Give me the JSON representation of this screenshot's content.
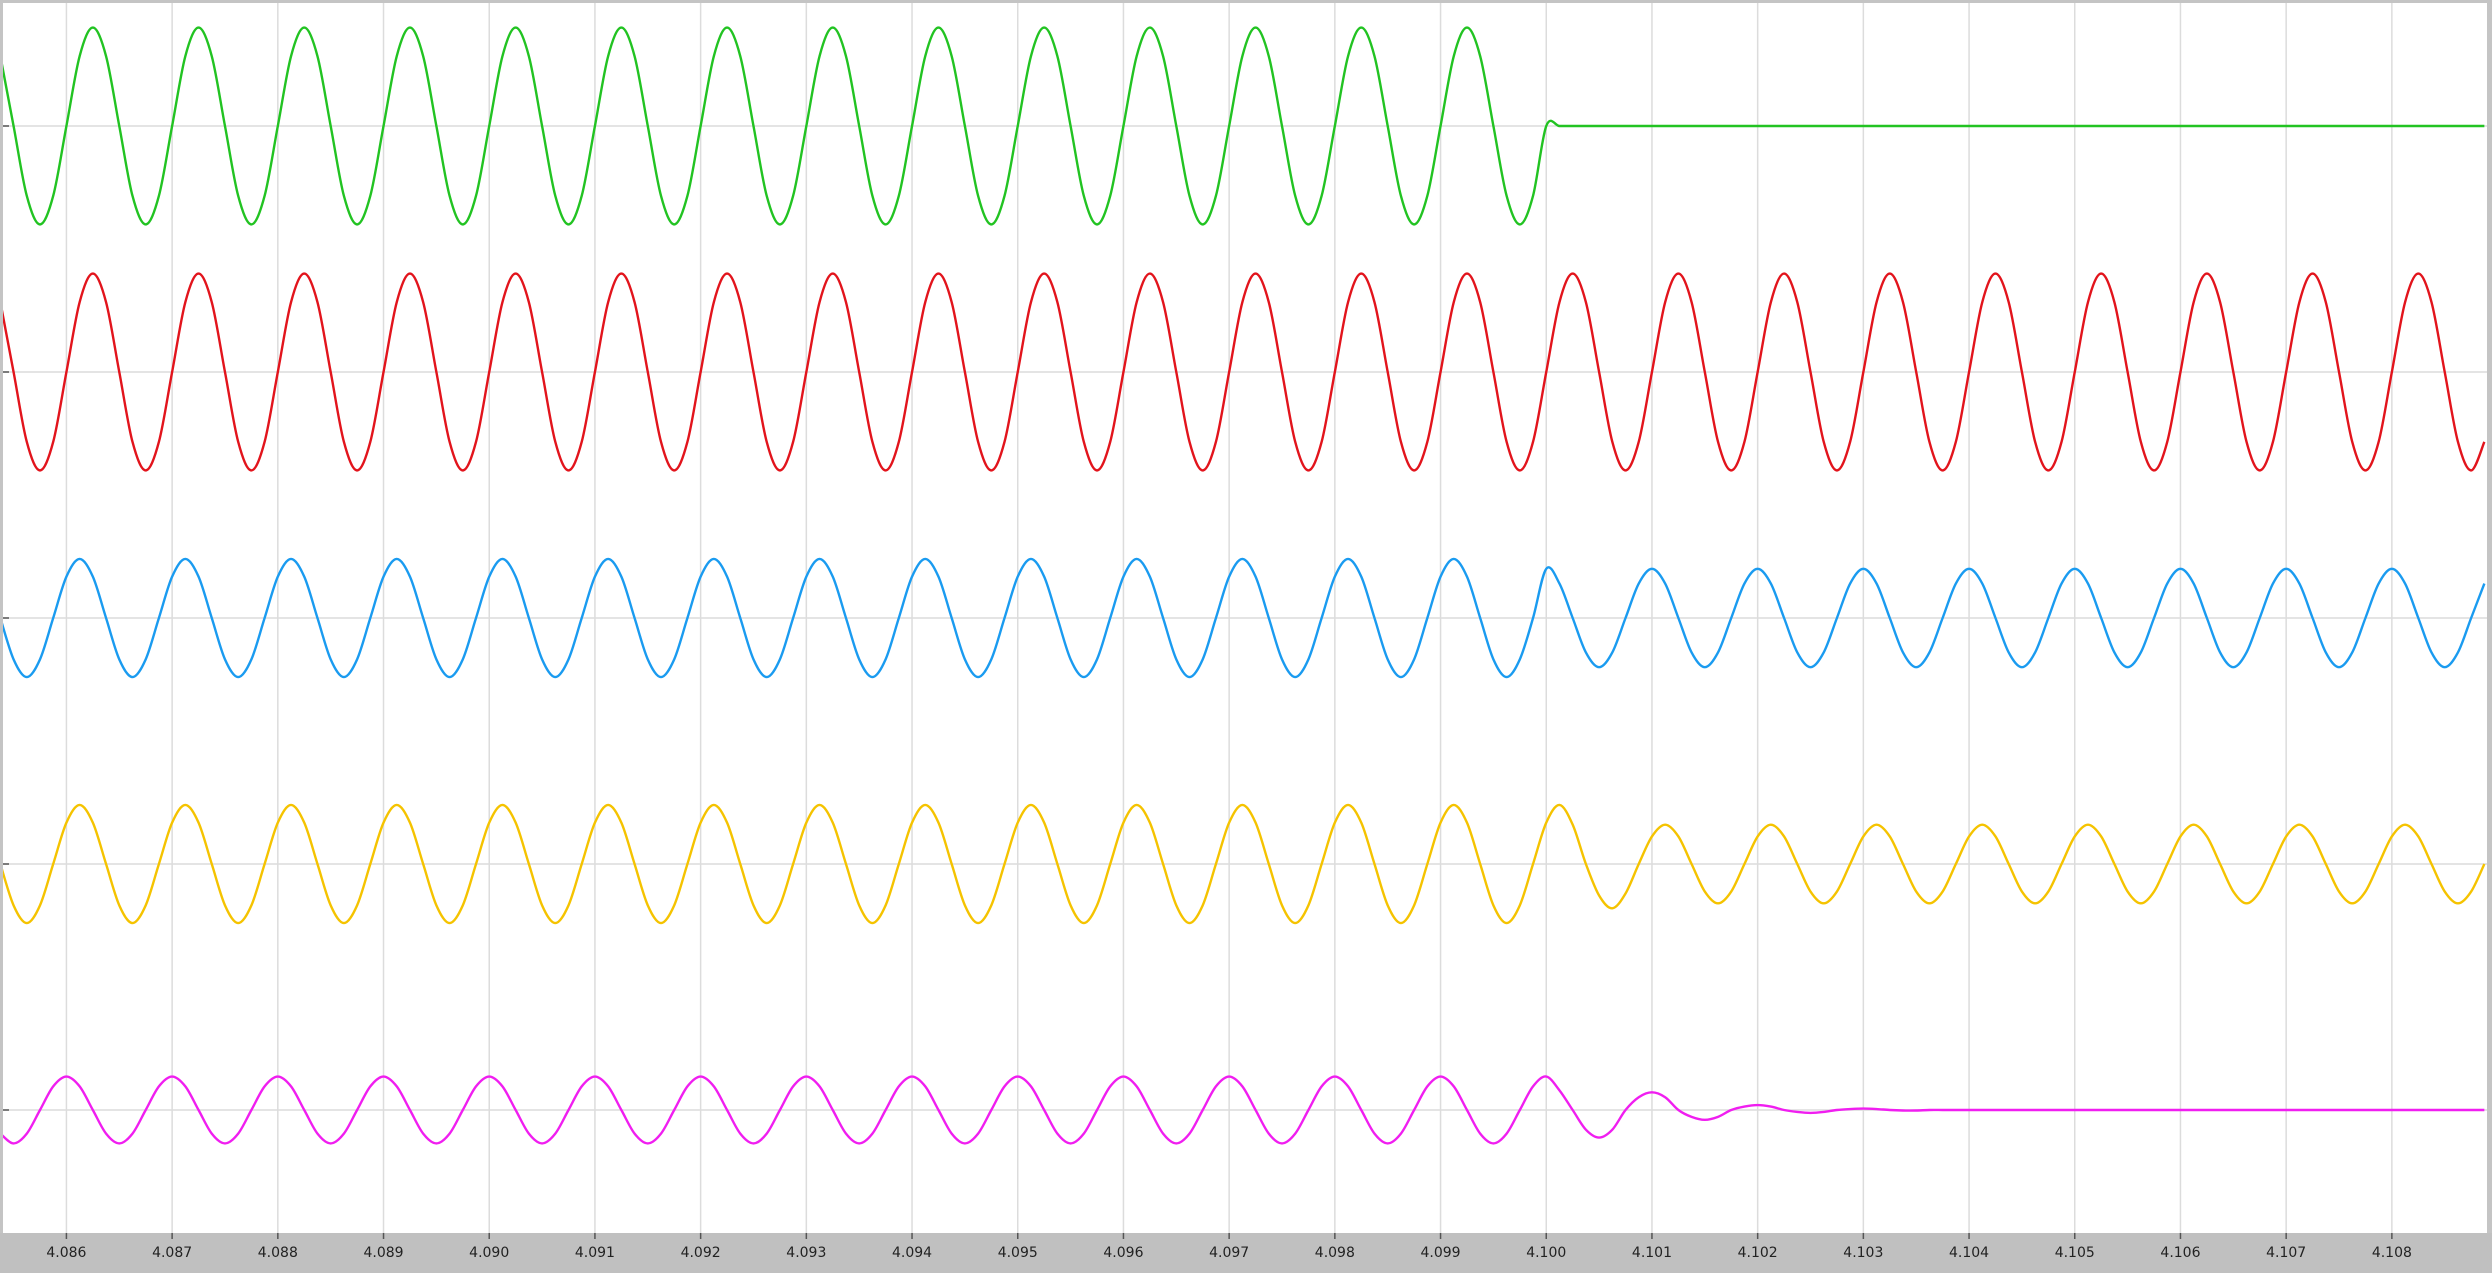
{
  "chart_data": {
    "type": "line",
    "xlim": [
      4.0854,
      4.1089
    ],
    "xticks": [
      4.086,
      4.087,
      4.088,
      4.089,
      {
        "value": 4.09,
        "label": "4.090"
      },
      4.091,
      4.092,
      4.093,
      4.094,
      4.095,
      4.096,
      4.097,
      4.098,
      4.099,
      {
        "value": 4.1,
        "label": "4.100"
      },
      4.101,
      4.102,
      4.103,
      4.104,
      4.105,
      4.106,
      4.107,
      4.108
    ],
    "ylim": [
      -1.25,
      1.25
    ],
    "yticks": [
      0
    ],
    "grid": true,
    "x": [
      4.085375,
      4.0855,
      4.085625,
      4.08575,
      4.085875,
      4.086,
      4.086125,
      4.08625,
      4.086375,
      4.0865,
      4.086625,
      4.08675,
      4.086875,
      4.087,
      4.087125,
      4.08725,
      4.087375,
      4.0875,
      4.087625,
      4.08775,
      4.087875,
      4.088,
      4.088125,
      4.08825,
      4.088375,
      4.0885,
      4.088625,
      4.08875,
      4.088875,
      4.089,
      4.089125,
      4.08925,
      4.089375,
      4.0895,
      4.089625,
      4.08975,
      4.089875,
      4.09,
      4.090125,
      4.09025,
      4.090375,
      4.0905,
      4.090625,
      4.09075,
      4.090875,
      4.091,
      4.091125,
      4.09125,
      4.091375,
      4.0915,
      4.091625,
      4.09175,
      4.091875,
      4.092,
      4.092125,
      4.09225,
      4.092375,
      4.0925,
      4.092625,
      4.09275,
      4.092875,
      4.093,
      4.093125,
      4.09325,
      4.093375,
      4.0935,
      4.093625,
      4.09375,
      4.093875,
      4.094,
      4.094125,
      4.09425,
      4.094375,
      4.0945,
      4.094625,
      4.09475,
      4.094875,
      4.095,
      4.095125,
      4.09525,
      4.095375,
      4.0955,
      4.095625,
      4.09575,
      4.095875,
      4.096,
      4.096125,
      4.09625,
      4.096375,
      4.0965,
      4.096625,
      4.09675,
      4.096875,
      4.097,
      4.097125,
      4.09725,
      4.097375,
      4.0975,
      4.097625,
      4.09775,
      4.097875,
      4.098,
      4.098125,
      4.09825,
      4.098375,
      4.0985,
      4.098625,
      4.09875,
      4.098875,
      4.099,
      4.099125,
      4.09925,
      4.099375,
      4.0995,
      4.099625,
      4.09975,
      4.099875,
      4.1,
      4.100125,
      4.10025,
      4.100375,
      4.1005,
      4.100625,
      4.10075,
      4.100875,
      4.101,
      4.101125,
      4.10125,
      4.101375,
      4.1015,
      4.101625,
      4.10175,
      4.101875,
      4.102,
      4.102125,
      4.10225,
      4.102375,
      4.1025,
      4.102625,
      4.10275,
      4.102875,
      4.103,
      4.103125,
      4.10325,
      4.103375,
      4.1035,
      4.103625,
      4.10375,
      4.103875,
      4.104,
      4.104125,
      4.10425,
      4.104375,
      4.1045,
      4.104625,
      4.10475,
      4.104875,
      4.105,
      4.105125,
      4.10525,
      4.105375,
      4.1055,
      4.105625,
      4.10575,
      4.105875,
      4.106,
      4.106125,
      4.10625,
      4.106375,
      4.1065,
      4.106625,
      4.10675,
      4.106875,
      4.107,
      4.107125,
      4.10725,
      4.107375,
      4.1075,
      4.107625,
      4.10775,
      4.107875,
      4.108,
      4.108125,
      4.10825,
      4.108375,
      4.1085,
      4.108625,
      4.10875,
      4.108875
    ],
    "series": [
      {
        "color": "#22c322",
        "values": [
          0.71,
          0,
          -0.71,
          -1,
          -0.71,
          0,
          0.71,
          1,
          0.71,
          0,
          -0.71,
          -1,
          -0.71,
          0,
          0.71,
          1,
          0.71,
          0,
          -0.71,
          -1,
          -0.71,
          0,
          0.71,
          1,
          0.71,
          0,
          -0.71,
          -1,
          -0.71,
          0,
          0.71,
          1,
          0.71,
          0,
          -0.71,
          -1,
          -0.71,
          0,
          0.71,
          1,
          0.71,
          0,
          -0.71,
          -1,
          -0.71,
          0,
          0.71,
          1,
          0.71,
          0,
          -0.71,
          -1,
          -0.71,
          0,
          0.71,
          1,
          0.71,
          0,
          -0.71,
          -1,
          -0.71,
          0,
          0.71,
          1,
          0.71,
          0,
          -0.71,
          -1,
          -0.71,
          0,
          0.71,
          1,
          0.71,
          0,
          -0.71,
          -1,
          -0.71,
          0,
          0.71,
          1,
          0.71,
          0,
          -0.71,
          -1,
          -0.71,
          0,
          0.71,
          1,
          0.71,
          0,
          -0.71,
          -1,
          -0.71,
          0,
          0.71,
          1,
          0.71,
          0,
          -0.71,
          -1,
          -0.71,
          0,
          0.71,
          1,
          0.71,
          0,
          -0.71,
          -1,
          -0.71,
          0,
          0.71,
          1,
          0.71,
          0,
          -0.71,
          -1,
          -0.71,
          0,
          0,
          0,
          0,
          0,
          0,
          0,
          0,
          0,
          0,
          0,
          0,
          0,
          0,
          0,
          0,
          0,
          0,
          0,
          0,
          0,
          0,
          0,
          0,
          0,
          0,
          0,
          0,
          0,
          0,
          0,
          0,
          0,
          0,
          0,
          0,
          0,
          0,
          0,
          0,
          0,
          0,
          0,
          0,
          0,
          0,
          0,
          0,
          0,
          0,
          0,
          0,
          0,
          0,
          0,
          0,
          0,
          0,
          0,
          0,
          0,
          0,
          0,
          0,
          0,
          0,
          0,
          0,
          0,
          0,
          0,
          0
        ]
      },
      {
        "color": "#e2141c",
        "values": [
          0.71,
          0,
          -0.71,
          -1,
          -0.71,
          0,
          0.71,
          1,
          0.71,
          0,
          -0.71,
          -1,
          -0.71,
          0,
          0.71,
          1,
          0.71,
          0,
          -0.71,
          -1,
          -0.71,
          0,
          0.71,
          1,
          0.71,
          0,
          -0.71,
          -1,
          -0.71,
          0,
          0.71,
          1,
          0.71,
          0,
          -0.71,
          -1,
          -0.71,
          0,
          0.71,
          1,
          0.71,
          0,
          -0.71,
          -1,
          -0.71,
          0,
          0.71,
          1,
          0.71,
          0,
          -0.71,
          -1,
          -0.71,
          0,
          0.71,
          1,
          0.71,
          0,
          -0.71,
          -1,
          -0.71,
          0,
          0.71,
          1,
          0.71,
          0,
          -0.71,
          -1,
          -0.71,
          0,
          0.71,
          1,
          0.71,
          0,
          -0.71,
          -1,
          -0.71,
          0,
          0.71,
          1,
          0.71,
          0,
          -0.71,
          -1,
          -0.71,
          0,
          0.71,
          1,
          0.71,
          0,
          -0.71,
          -1,
          -0.71,
          0,
          0.71,
          1,
          0.71,
          0,
          -0.71,
          -1,
          -0.71,
          0,
          0.71,
          1,
          0.71,
          0,
          -0.71,
          -1,
          -0.71,
          0,
          0.71,
          1,
          0.71,
          0,
          -0.71,
          -1,
          -0.71,
          0,
          0.71,
          1,
          0.71,
          0,
          -0.71,
          -1,
          -0.71,
          0,
          0.71,
          1,
          0.71,
          0,
          -0.71,
          -1,
          -0.71,
          0,
          0.71,
          1,
          0.71,
          0,
          -0.71,
          -1,
          -0.71,
          0,
          0.71,
          1,
          0.71,
          0,
          -0.71,
          -1,
          -0.71,
          0,
          0.71,
          1,
          0.71,
          0,
          -0.71,
          -1,
          -0.71,
          0,
          0.71,
          1,
          0.71,
          0,
          -0.71,
          -1,
          -0.71,
          0,
          0.71,
          1,
          0.71,
          0,
          -0.71,
          -1,
          -0.71,
          0,
          0.71,
          1,
          0.71,
          0,
          -0.71,
          -1,
          -0.71,
          0,
          0.71,
          1,
          0.71,
          0,
          -0.71,
          -1,
          -0.71
        ]
      },
      {
        "color": "#1a9bf0",
        "values": [
          0,
          -0.42,
          -0.6,
          -0.42,
          0,
          0.42,
          0.6,
          0.42,
          0,
          -0.42,
          -0.6,
          -0.42,
          0,
          0.42,
          0.6,
          0.42,
          0,
          -0.42,
          -0.6,
          -0.42,
          0,
          0.42,
          0.6,
          0.42,
          0,
          -0.42,
          -0.6,
          -0.42,
          0,
          0.42,
          0.6,
          0.42,
          0,
          -0.42,
          -0.6,
          -0.42,
          0,
          0.42,
          0.6,
          0.42,
          0,
          -0.42,
          -0.6,
          -0.42,
          0,
          0.42,
          0.6,
          0.42,
          0,
          -0.42,
          -0.6,
          -0.42,
          0,
          0.42,
          0.6,
          0.42,
          0,
          -0.42,
          -0.6,
          -0.42,
          0,
          0.42,
          0.6,
          0.42,
          0,
          -0.42,
          -0.6,
          -0.42,
          0,
          0.42,
          0.6,
          0.42,
          0,
          -0.42,
          -0.6,
          -0.42,
          0,
          0.42,
          0.6,
          0.42,
          0,
          -0.42,
          -0.6,
          -0.42,
          0,
          0.42,
          0.6,
          0.42,
          0,
          -0.42,
          -0.6,
          -0.42,
          0,
          0.42,
          0.6,
          0.42,
          0,
          -0.42,
          -0.6,
          -0.42,
          0,
          0.42,
          0.6,
          0.42,
          0,
          -0.42,
          -0.6,
          -0.42,
          0,
          0.42,
          0.6,
          0.42,
          0,
          -0.42,
          -0.6,
          -0.42,
          0,
          0.5,
          0.35,
          0,
          -0.35,
          -0.5,
          -0.35,
          0,
          0.35,
          0.5,
          0.35,
          0,
          -0.35,
          -0.5,
          -0.35,
          0,
          0.35,
          0.5,
          0.35,
          0,
          -0.35,
          -0.5,
          -0.35,
          0,
          0.35,
          0.5,
          0.35,
          0,
          -0.35,
          -0.5,
          -0.35,
          0,
          0.35,
          0.5,
          0.35,
          0,
          -0.35,
          -0.5,
          -0.35,
          0,
          0.35,
          0.5,
          0.35,
          0,
          -0.35,
          -0.5,
          -0.35,
          0,
          0.35,
          0.5,
          0.35,
          0,
          -0.35,
          -0.5,
          -0.35,
          0,
          0.35,
          0.5,
          0.35,
          0,
          -0.35,
          -0.5,
          -0.35,
          0,
          0.35,
          0.5,
          0.35,
          0,
          -0.35,
          -0.5,
          -0.35,
          0,
          0.35
        ]
      },
      {
        "color": "#f5c300",
        "values": [
          0,
          -0.42,
          -0.6,
          -0.42,
          0,
          0.42,
          0.6,
          0.42,
          0,
          -0.42,
          -0.6,
          -0.42,
          0,
          0.42,
          0.6,
          0.42,
          0,
          -0.42,
          -0.6,
          -0.42,
          0,
          0.42,
          0.6,
          0.42,
          0,
          -0.42,
          -0.6,
          -0.42,
          0,
          0.42,
          0.6,
          0.42,
          0,
          -0.42,
          -0.6,
          -0.42,
          0,
          0.42,
          0.6,
          0.42,
          0,
          -0.42,
          -0.6,
          -0.42,
          0,
          0.42,
          0.6,
          0.42,
          0,
          -0.42,
          -0.6,
          -0.42,
          0,
          0.42,
          0.6,
          0.42,
          0,
          -0.42,
          -0.6,
          -0.42,
          0,
          0.42,
          0.6,
          0.42,
          0,
          -0.42,
          -0.6,
          -0.42,
          0,
          0.42,
          0.6,
          0.42,
          0,
          -0.42,
          -0.6,
          -0.42,
          0,
          0.42,
          0.6,
          0.42,
          0,
          -0.42,
          -0.6,
          -0.42,
          0,
          0.42,
          0.6,
          0.42,
          0,
          -0.42,
          -0.6,
          -0.42,
          0,
          0.42,
          0.6,
          0.42,
          0,
          -0.42,
          -0.6,
          -0.42,
          0,
          0.42,
          0.6,
          0.42,
          0,
          -0.42,
          -0.6,
          -0.42,
          0,
          0.42,
          0.6,
          0.42,
          0,
          -0.42,
          -0.6,
          -0.42,
          0,
          0.42,
          0.6,
          0.4,
          0,
          -0.32,
          -0.45,
          -0.3,
          0,
          0.28,
          0.4,
          0.28,
          0,
          -0.28,
          -0.4,
          -0.28,
          0,
          0.28,
          0.4,
          0.28,
          0,
          -0.28,
          -0.4,
          -0.28,
          0,
          0.28,
          0.4,
          0.28,
          0,
          -0.28,
          -0.4,
          -0.28,
          0,
          0.28,
          0.4,
          0.28,
          0,
          -0.28,
          -0.4,
          -0.28,
          0,
          0.28,
          0.4,
          0.28,
          0,
          -0.28,
          -0.4,
          -0.28,
          0,
          0.28,
          0.4,
          0.28,
          0,
          -0.28,
          -0.4,
          -0.28,
          0,
          0.28,
          0.4,
          0.28,
          0,
          -0.28,
          -0.4,
          -0.28,
          0,
          0.28,
          0.4,
          0.28,
          0,
          -0.28,
          -0.4,
          -0.28,
          0
        ]
      },
      {
        "color": "#f01ef0",
        "values": [
          -0.24,
          -0.34,
          -0.24,
          0,
          0.24,
          0.34,
          0.24,
          0,
          -0.24,
          -0.34,
          -0.24,
          0,
          0.24,
          0.34,
          0.24,
          0,
          -0.24,
          -0.34,
          -0.24,
          0,
          0.24,
          0.34,
          0.24,
          0,
          -0.24,
          -0.34,
          -0.24,
          0,
          0.24,
          0.34,
          0.24,
          0,
          -0.24,
          -0.34,
          -0.24,
          0,
          0.24,
          0.34,
          0.24,
          0,
          -0.24,
          -0.34,
          -0.24,
          0,
          0.24,
          0.34,
          0.24,
          0,
          -0.24,
          -0.34,
          -0.24,
          0,
          0.24,
          0.34,
          0.24,
          0,
          -0.24,
          -0.34,
          -0.24,
          0,
          0.24,
          0.34,
          0.24,
          0,
          -0.24,
          -0.34,
          -0.24,
          0,
          0.24,
          0.34,
          0.24,
          0,
          -0.24,
          -0.34,
          -0.24,
          0,
          0.24,
          0.34,
          0.24,
          0,
          -0.24,
          -0.34,
          -0.24,
          0,
          0.24,
          0.34,
          0.24,
          0,
          -0.24,
          -0.34,
          -0.24,
          0,
          0.24,
          0.34,
          0.24,
          0,
          -0.24,
          -0.34,
          -0.24,
          0,
          0.24,
          0.34,
          0.24,
          0,
          -0.24,
          -0.34,
          -0.24,
          0,
          0.24,
          0.34,
          0.24,
          0,
          -0.24,
          -0.34,
          -0.24,
          0,
          0.24,
          0.34,
          0.2,
          0,
          -0.2,
          -0.28,
          -0.2,
          0,
          0.13,
          0.18,
          0.13,
          0,
          -0.07,
          -0.1,
          -0.07,
          0,
          0.035,
          0.05,
          0.035,
          0,
          -0.02,
          -0.03,
          -0.02,
          0,
          0.01,
          0.015,
          0.01,
          0,
          -0.005,
          -0.005,
          0,
          0,
          0,
          0,
          0,
          0,
          0,
          0,
          0,
          0,
          0,
          0,
          0,
          0,
          0,
          0,
          0,
          0,
          0,
          0,
          0,
          0,
          0,
          0,
          0,
          0,
          0,
          0,
          0,
          0,
          0,
          0,
          0,
          0,
          0,
          0,
          0,
          0,
          0,
          0,
          0,
          0,
          0
        ]
      }
    ]
  }
}
